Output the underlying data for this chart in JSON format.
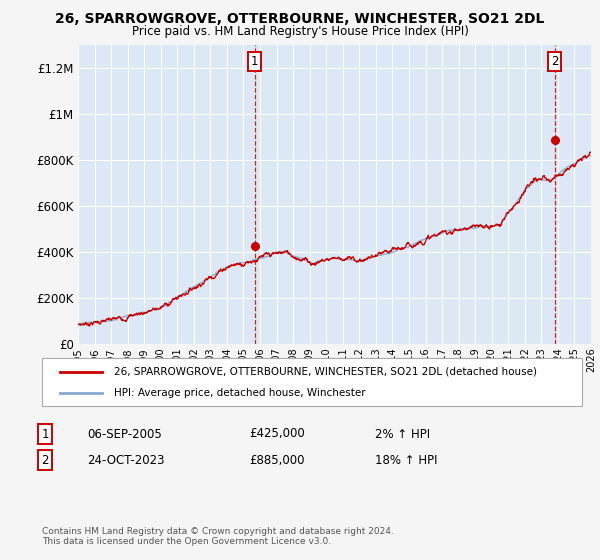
{
  "title": "26, SPARROWGROVE, OTTERBOURNE, WINCHESTER, SO21 2DL",
  "subtitle": "Price paid vs. HM Land Registry's House Price Index (HPI)",
  "ylim": [
    0,
    1300000
  ],
  "yticks": [
    0,
    200000,
    400000,
    600000,
    800000,
    1000000,
    1200000
  ],
  "ytick_labels": [
    "£0",
    "£200K",
    "£400K",
    "£600K",
    "£800K",
    "£1M",
    "£1.2M"
  ],
  "fig_bg_color": "#f5f5f5",
  "plot_bg_color": "#dce8f5",
  "grid_color": "#ffffff",
  "legend_label_red": "26, SPARROWGROVE, OTTERBOURNE, WINCHESTER, SO21 2DL (detached house)",
  "legend_label_blue": "HPI: Average price, detached house, Winchester",
  "annotation1_date": "06-SEP-2005",
  "annotation1_price": "£425,000",
  "annotation1_hpi": "2% ↑ HPI",
  "annotation2_date": "24-OCT-2023",
  "annotation2_price": "£885,000",
  "annotation2_hpi": "18% ↑ HPI",
  "footer": "Contains HM Land Registry data © Crown copyright and database right 2024.\nThis data is licensed under the Open Government Licence v3.0.",
  "red_color": "#cc0000",
  "blue_color": "#88aacc",
  "sale1_year": 2005.68,
  "sale1_price": 425000,
  "sale2_year": 2023.81,
  "sale2_price": 885000,
  "xmin": 1995,
  "xmax": 2026
}
